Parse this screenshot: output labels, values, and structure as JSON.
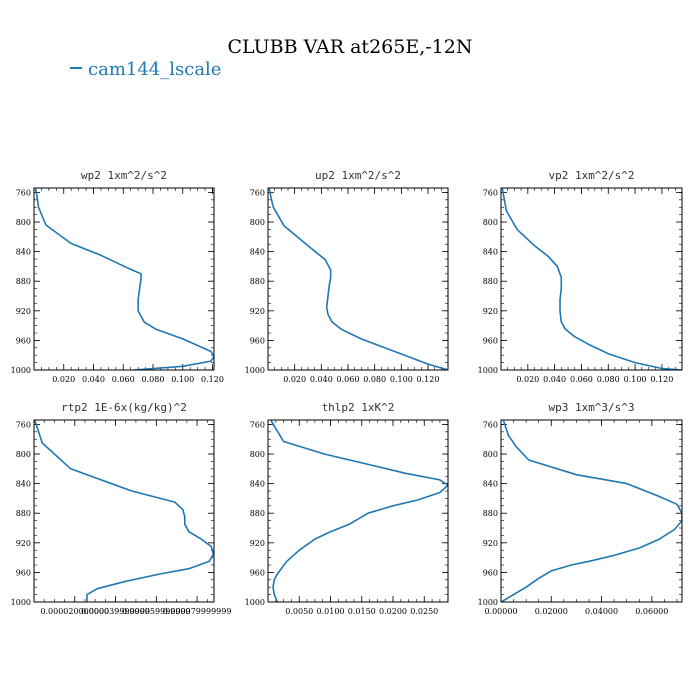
{
  "figure": {
    "title": "CLUBB VAR at265E,-12N",
    "legend": [
      {
        "label": "cam144_lscale",
        "color": "#1f77b4"
      }
    ]
  },
  "chart_data": [
    {
      "type": "line",
      "title": "wp2   1xm^2/s^2",
      "xlim": [
        0.0,
        0.121
      ],
      "ylim": [
        1000,
        754
      ],
      "y_inverted": true,
      "xticks": [
        0.02,
        0.04,
        0.06,
        0.08,
        0.1,
        0.12
      ],
      "xtick_labels": [
        "0.020",
        "0.040",
        "0.060",
        "0.080",
        "0.100",
        "0.120"
      ],
      "yticks": [
        760,
        800,
        840,
        880,
        920,
        960,
        1000
      ],
      "series": [
        {
          "name": "cam144_lscale",
          "color": "#1f77b4",
          "x": [
            0.067,
            0.1,
            0.119,
            0.121,
            0.119,
            0.1,
            0.082,
            0.074,
            0.07,
            0.07,
            0.071,
            0.072,
            0.072,
            0.065,
            0.045,
            0.025,
            0.008,
            0.003,
            0.002,
            0.001
          ],
          "y": [
            1000,
            995,
            988,
            982,
            975,
            958,
            945,
            935,
            920,
            905,
            890,
            875,
            870,
            864,
            845,
            829,
            804,
            780,
            765,
            755
          ]
        }
      ]
    },
    {
      "type": "line",
      "title": "up2   1xm^2/s^2",
      "xlim": [
        0.0,
        0.135
      ],
      "ylim": [
        1000,
        754
      ],
      "y_inverted": true,
      "xticks": [
        0.02,
        0.04,
        0.06,
        0.08,
        0.1,
        0.12
      ],
      "xtick_labels": [
        "0.020",
        "0.040",
        "0.060",
        "0.080",
        "0.100",
        "0.120"
      ],
      "yticks": [
        760,
        800,
        840,
        880,
        920,
        960,
        1000
      ],
      "series": [
        {
          "name": "cam144_lscale",
          "color": "#1f77b4",
          "x": [
            0.135,
            0.12,
            0.095,
            0.07,
            0.055,
            0.048,
            0.045,
            0.044,
            0.045,
            0.046,
            0.047,
            0.047,
            0.043,
            0.03,
            0.012,
            0.004,
            0.002,
            0.001
          ],
          "y": [
            1000,
            992,
            975,
            958,
            945,
            935,
            925,
            915,
            900,
            885,
            875,
            865,
            851,
            832,
            805,
            780,
            765,
            755
          ]
        }
      ]
    },
    {
      "type": "line",
      "title": "vp2   1xm^2/s^2",
      "xlim": [
        0.0,
        0.135
      ],
      "ylim": [
        1000,
        754
      ],
      "y_inverted": true,
      "xticks": [
        0.02,
        0.04,
        0.06,
        0.08,
        0.1,
        0.12
      ],
      "xtick_labels": [
        "0.020",
        "0.040",
        "0.060",
        "0.080",
        "0.100",
        "0.120"
      ],
      "yticks": [
        760,
        800,
        840,
        880,
        920,
        960,
        1000
      ],
      "series": [
        {
          "name": "cam144_lscale",
          "color": "#1f77b4",
          "x": [
            0.135,
            0.12,
            0.1,
            0.08,
            0.065,
            0.055,
            0.048,
            0.045,
            0.044,
            0.044,
            0.045,
            0.045,
            0.042,
            0.035,
            0.025,
            0.012,
            0.004,
            0.002,
            0.001
          ],
          "y": [
            1000,
            998,
            990,
            978,
            965,
            955,
            945,
            935,
            920,
            905,
            890,
            875,
            860,
            846,
            832,
            810,
            785,
            765,
            755
          ]
        }
      ]
    },
    {
      "type": "line",
      "title": "rtp2   1E-6x(kg/kg)^2",
      "xlim": [
        0.0,
        8.83e-05
      ],
      "ylim": [
        1000,
        754
      ],
      "y_inverted": true,
      "xticks": [
        2e-05,
        4e-05,
        6e-05,
        8e-05
      ],
      "xtick_labels": [
        "0.000020000000",
        "0.000039999999",
        "0.000059999999",
        "0.000079999999"
      ],
      "yticks": [
        760,
        800,
        840,
        880,
        920,
        960,
        1000
      ],
      "series": [
        {
          "name": "cam144_lscale",
          "color": "#1f77b4",
          "x": [
            2.6e-05,
            2.6e-05,
            3.1e-05,
            4.5e-05,
            6.2e-05,
            7.6e-05,
            8.6e-05,
            8.8e-05,
            8.7e-05,
            8.2e-05,
            7.6e-05,
            7.4e-05,
            7.4e-05,
            7.3e-05,
            6.9e-05,
            4.8e-05,
            1.8e-05,
            4e-06,
            5e-07
          ],
          "y": [
            1000,
            990,
            982,
            972,
            962,
            955,
            945,
            935,
            925,
            915,
            905,
            895,
            885,
            875,
            865,
            850,
            820,
            785,
            755
          ]
        }
      ]
    },
    {
      "type": "line",
      "title": "thlp2   1xK^2",
      "xlim": [
        0.0,
        0.0288
      ],
      "ylim": [
        1000,
        754
      ],
      "y_inverted": true,
      "xticks": [
        0.005,
        0.01,
        0.015,
        0.02,
        0.025
      ],
      "xtick_labels": [
        "0.0050",
        "0.0100",
        "0.0150",
        "0.0200",
        "0.0250"
      ],
      "yticks": [
        760,
        800,
        840,
        880,
        920,
        960,
        1000
      ],
      "series": [
        {
          "name": "cam144_lscale",
          "color": "#1f77b4",
          "x": [
            0.0015,
            0.001,
            0.0008,
            0.001,
            0.0015,
            0.003,
            0.005,
            0.0075,
            0.01,
            0.013,
            0.016,
            0.02,
            0.024,
            0.0275,
            0.0288,
            0.0275,
            0.022,
            0.015,
            0.009,
            0.0025,
            0.0005
          ],
          "y": [
            1000,
            990,
            980,
            970,
            962,
            945,
            930,
            915,
            905,
            895,
            880,
            870,
            862,
            852,
            842,
            835,
            826,
            812,
            800,
            783,
            755
          ]
        }
      ]
    },
    {
      "type": "line",
      "title": "wp3   1xm^3/s^3",
      "xlim": [
        0.0,
        0.072
      ],
      "ylim": [
        1000,
        754
      ],
      "y_inverted": true,
      "xticks": [
        0.0,
        0.02,
        0.04,
        0.06
      ],
      "xtick_labels": [
        "0.00000",
        "0.02000",
        "0.04000",
        "0.06000"
      ],
      "yticks": [
        760,
        800,
        840,
        880,
        920,
        960,
        1000
      ],
      "series": [
        {
          "name": "cam144_lscale",
          "color": "#1f77b4",
          "x": [
            0.0,
            0.005,
            0.01,
            0.015,
            0.02,
            0.028,
            0.035,
            0.045,
            0.055,
            0.063,
            0.069,
            0.072,
            0.072,
            0.07,
            0.062,
            0.05,
            0.03,
            0.011,
            0.006,
            0.003,
            0.001
          ],
          "y": [
            1000,
            990,
            980,
            968,
            958,
            950,
            945,
            937,
            927,
            915,
            902,
            890,
            880,
            868,
            856,
            840,
            828,
            808,
            790,
            775,
            755
          ]
        }
      ]
    }
  ]
}
